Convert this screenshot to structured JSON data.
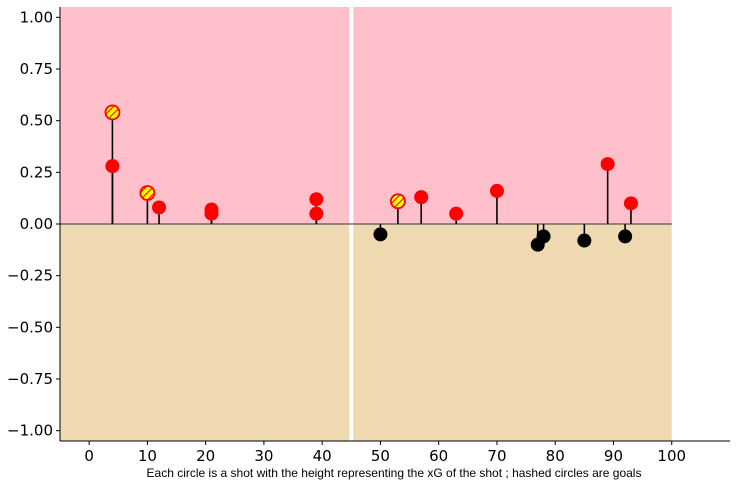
{
  "chart_data": {
    "type": "scatter",
    "title": "",
    "xlabel": "Each circle is a shot with the height representing the xG of the shot ; hashed circles are goals",
    "ylabel": "",
    "xlim": [
      -5,
      110
    ],
    "ylim": [
      -1.05,
      1.05
    ],
    "x_ticks": [
      0,
      10,
      20,
      30,
      40,
      50,
      60,
      70,
      80,
      90,
      100
    ],
    "y_ticks": [
      -1.0,
      -0.75,
      -0.5,
      -0.25,
      0.0,
      0.25,
      0.5,
      0.75,
      1.0
    ],
    "x_tick_labels": [
      "0",
      "10",
      "20",
      "30",
      "40",
      "50",
      "60",
      "70",
      "80",
      "90",
      "100"
    ],
    "y_tick_labels": [
      "−1.00",
      "−0.75",
      "−0.50",
      "−0.25",
      "0.00",
      "0.25",
      "0.50",
      "0.75",
      "1.00"
    ],
    "halftime_x": 45,
    "pitch_x_range": [
      -5,
      100
    ],
    "background": {
      "top_color": "#ffc0cb",
      "bottom_color": "#eed9b1",
      "divider_color": "#ffffff"
    },
    "series": [
      {
        "color": "#ff0000",
        "points": [
          {
            "x": 4,
            "y": 0.28,
            "goal": false
          },
          {
            "x": 4,
            "y": 0.54,
            "goal": true
          },
          {
            "x": 10,
            "y": 0.15,
            "goal": true
          },
          {
            "x": 12,
            "y": 0.08,
            "goal": false
          },
          {
            "x": 21,
            "y": 0.07,
            "goal": false
          },
          {
            "x": 21,
            "y": 0.05,
            "goal": false
          },
          {
            "x": 39,
            "y": 0.12,
            "goal": false
          },
          {
            "x": 39,
            "y": 0.05,
            "goal": false
          },
          {
            "x": 53,
            "y": 0.11,
            "goal": true
          },
          {
            "x": 57,
            "y": 0.13,
            "goal": false
          },
          {
            "x": 63,
            "y": 0.05,
            "goal": false
          },
          {
            "x": 70,
            "y": 0.16,
            "goal": false
          },
          {
            "x": 89,
            "y": 0.29,
            "goal": false
          },
          {
            "x": 93,
            "y": 0.1,
            "goal": false
          }
        ]
      },
      {
        "color": "#000000",
        "points": [
          {
            "x": 50,
            "y": -0.05,
            "goal": false
          },
          {
            "x": 77,
            "y": -0.1,
            "goal": false
          },
          {
            "x": 78,
            "y": -0.06,
            "goal": false
          },
          {
            "x": 85,
            "y": -0.08,
            "goal": false
          },
          {
            "x": 92,
            "y": -0.06,
            "goal": false
          }
        ]
      }
    ],
    "goal_fill_color": "#ffff00",
    "grid": false,
    "legend": "none"
  }
}
